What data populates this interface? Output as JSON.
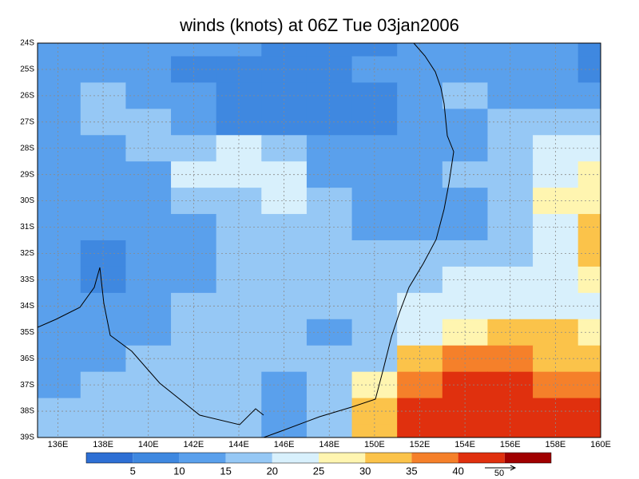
{
  "chart_data": {
    "type": "gridded-map",
    "title": "winds (knots) at 06Z Tue 03jan2006",
    "xlim": [
      135.1,
      160
    ],
    "ylim": [
      -24,
      -39
    ],
    "xticks": [
      {
        "value": 136,
        "label": "136E"
      },
      {
        "value": 138,
        "label": "138E"
      },
      {
        "value": 140,
        "label": "140E"
      },
      {
        "value": 142,
        "label": "142E"
      },
      {
        "value": 144,
        "label": "144E"
      },
      {
        "value": 146,
        "label": "146E"
      },
      {
        "value": 148,
        "label": "148E"
      },
      {
        "value": 150,
        "label": "150E"
      },
      {
        "value": 152,
        "label": "152E"
      },
      {
        "value": 154,
        "label": "154E"
      },
      {
        "value": 156,
        "label": "156E"
      },
      {
        "value": 158,
        "label": "158E"
      },
      {
        "value": 160,
        "label": "160E"
      }
    ],
    "yticks": [
      {
        "value": -24,
        "label": "24S"
      },
      {
        "value": -25,
        "label": "25S"
      },
      {
        "value": -26,
        "label": "26S"
      },
      {
        "value": -27,
        "label": "27S"
      },
      {
        "value": -28,
        "label": "28S"
      },
      {
        "value": -29,
        "label": "29S"
      },
      {
        "value": -30,
        "label": "30S"
      },
      {
        "value": -31,
        "label": "31S"
      },
      {
        "value": -32,
        "label": "32S"
      },
      {
        "value": -33,
        "label": "33S"
      },
      {
        "value": -34,
        "label": "34S"
      },
      {
        "value": -35,
        "label": "35S"
      },
      {
        "value": -36,
        "label": "36S"
      },
      {
        "value": -37,
        "label": "37S"
      },
      {
        "value": -38,
        "label": "38S"
      },
      {
        "value": -39,
        "label": "39S"
      }
    ],
    "grid": true,
    "levels": [
      5,
      10,
      15,
      20,
      25,
      30,
      35,
      40
    ],
    "colors": [
      "#2e6fd4",
      "#3f88e0",
      "#5aa0ec",
      "#96c8f5",
      "#d8f0fc",
      "#fff5b0",
      "#fbc34a",
      "#f5802a",
      "#e0300e",
      "#a00000"
    ],
    "reference_vector": "50",
    "lon": [
      136,
      138,
      140,
      142,
      144,
      146,
      148,
      150,
      152,
      154,
      156,
      158,
      160
    ],
    "lat": [
      -24,
      -25,
      -26,
      -27,
      -28,
      -29,
      -30,
      -31,
      -32,
      -33,
      -34,
      -35,
      -36,
      -37,
      -38,
      -39
    ],
    "speed": [
      [
        12,
        12,
        13,
        12,
        10,
        8,
        8,
        9,
        12,
        12,
        10,
        10,
        6
      ],
      [
        12,
        13,
        11,
        9,
        7,
        6,
        7,
        10,
        13,
        14,
        11,
        10,
        7
      ],
      [
        14,
        18,
        14,
        10,
        8,
        5,
        5,
        9,
        13,
        15,
        13,
        12,
        12
      ],
      [
        13,
        16,
        16,
        12,
        8,
        6,
        6,
        8,
        12,
        14,
        15,
        18,
        17
      ],
      [
        12,
        14,
        16,
        18,
        22,
        16,
        10,
        11,
        12,
        14,
        17,
        20,
        21
      ],
      [
        13,
        13,
        14,
        20,
        24,
        22,
        14,
        12,
        13,
        15,
        18,
        23,
        26
      ],
      [
        14,
        11,
        13,
        16,
        19,
        21,
        17,
        13,
        12,
        12,
        16,
        25,
        28
      ],
      [
        13,
        10,
        11,
        13,
        15,
        16,
        16,
        14,
        11,
        11,
        15,
        24,
        31
      ],
      [
        12,
        8,
        11,
        13,
        16,
        17,
        18,
        17,
        15,
        15,
        17,
        24,
        31
      ],
      [
        12,
        9,
        12,
        14,
        17,
        18,
        19,
        18,
        17,
        20,
        22,
        22,
        26
      ],
      [
        12,
        11,
        12,
        16,
        18,
        18,
        17,
        16,
        20,
        22,
        22,
        22,
        22
      ],
      [
        12,
        12,
        13,
        15,
        17,
        15,
        14,
        18,
        24,
        28,
        30,
        30,
        29
      ],
      [
        13,
        13,
        15,
        17,
        16,
        15,
        15,
        19,
        30,
        35,
        35,
        34,
        33
      ],
      [
        14,
        16,
        16,
        18,
        17,
        14,
        17,
        28,
        38,
        40,
        40,
        38,
        36
      ],
      [
        16,
        18,
        18,
        18,
        16,
        12,
        18,
        30,
        42,
        46,
        42,
        40,
        40
      ],
      [
        16,
        18,
        18,
        18,
        16,
        12,
        19,
        33,
        42,
        45,
        42,
        42,
        41
      ]
    ]
  }
}
